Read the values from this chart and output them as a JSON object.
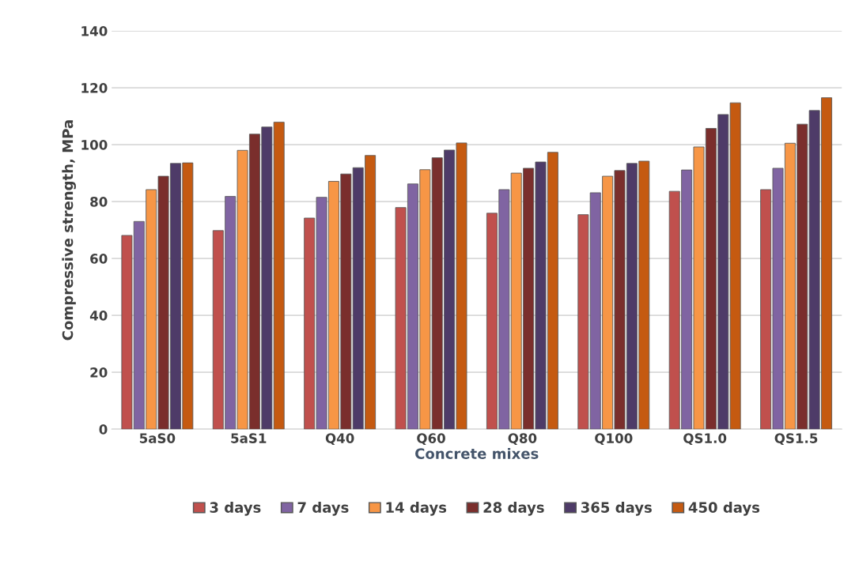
{
  "chart_data": {
    "type": "bar",
    "xlabel": "Concrete mixes",
    "ylabel": "Compressive strength, MPa",
    "categories": [
      "5aS0",
      "5aS1",
      "Q40",
      "Q60",
      "Q80",
      "Q100",
      "QS1.0",
      "QS1.5"
    ],
    "series": [
      {
        "name": "3 days",
        "color": "#c0504d",
        "values": [
          68.1,
          69.8,
          74.2,
          77.9,
          75.9,
          75.4,
          83.6,
          84.2
        ]
      },
      {
        "name": "7 days",
        "color": "#8064a2",
        "values": [
          73.0,
          81.8,
          81.5,
          86.2,
          84.2,
          83.1,
          91.1,
          91.7
        ]
      },
      {
        "name": "14 days",
        "color": "#f79646",
        "values": [
          84.2,
          98.0,
          87.1,
          91.2,
          90.0,
          88.9,
          99.2,
          100.5
        ]
      },
      {
        "name": "28 days",
        "color": "#7a2e2c",
        "values": [
          88.9,
          103.7,
          89.7,
          95.4,
          91.7,
          90.9,
          105.7,
          107.2
        ]
      },
      {
        "name": "365 days",
        "color": "#4e3b68",
        "values": [
          93.4,
          106.2,
          91.9,
          98.1,
          93.9,
          93.4,
          110.6,
          112.0
        ]
      },
      {
        "name": "450 days",
        "color": "#c55a11",
        "values": [
          93.6,
          107.9,
          96.2,
          100.6,
          97.3,
          94.2,
          114.7,
          116.5
        ]
      }
    ],
    "ylim": [
      0,
      140
    ],
    "yticks": [
      0,
      20,
      40,
      60,
      80,
      100,
      120,
      140
    ],
    "grid": "y",
    "legend": "bottom"
  }
}
